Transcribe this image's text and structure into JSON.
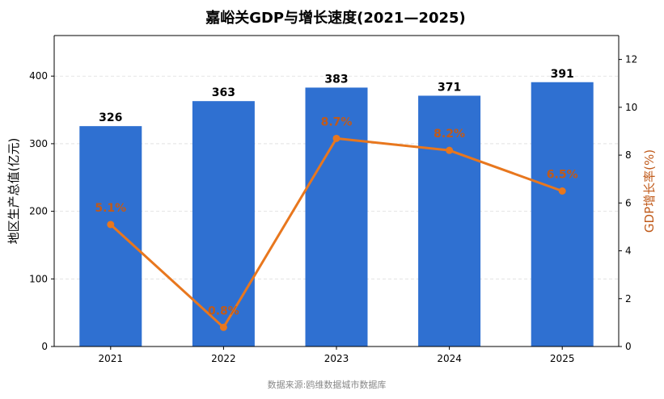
{
  "chart_data": {
    "type": "bar",
    "title": "嘉峪关GDP与增长速度(2021—2025)",
    "categories": [
      "2021",
      "2022",
      "2023",
      "2024",
      "2025"
    ],
    "series": [
      {
        "name": "",
        "type": "bar",
        "axis": "left",
        "values": [
          326,
          363,
          383,
          371,
          391
        ],
        "labels": [
          "326",
          "363",
          "383",
          "371",
          "391"
        ]
      },
      {
        "name": "",
        "type": "line",
        "axis": "right",
        "values": [
          5.1,
          0.8,
          8.7,
          8.2,
          6.5
        ],
        "labels": [
          "5.1%",
          "0.8%",
          "8.7%",
          "8.2%",
          "6.5%"
        ]
      }
    ],
    "ylabel_left": "地区生产总值(亿元)",
    "ylabel_right": "GDP增长率(%)",
    "ylim_left": [
      0,
      460
    ],
    "ylim_right": [
      0,
      13
    ],
    "yticks_left": [
      "0",
      "100",
      "200",
      "300",
      "400"
    ],
    "yticks_right": [
      "0",
      "2",
      "4",
      "6",
      "8",
      "10",
      "12"
    ],
    "grid": "horizontal-dashed",
    "colors": {
      "bar": "#2f70d1",
      "line": "#e8771e",
      "line_label": "#c05a1a",
      "right_axis_title": "#c05a1a"
    },
    "source": "数据来源:鸥维数据城市数据库"
  }
}
